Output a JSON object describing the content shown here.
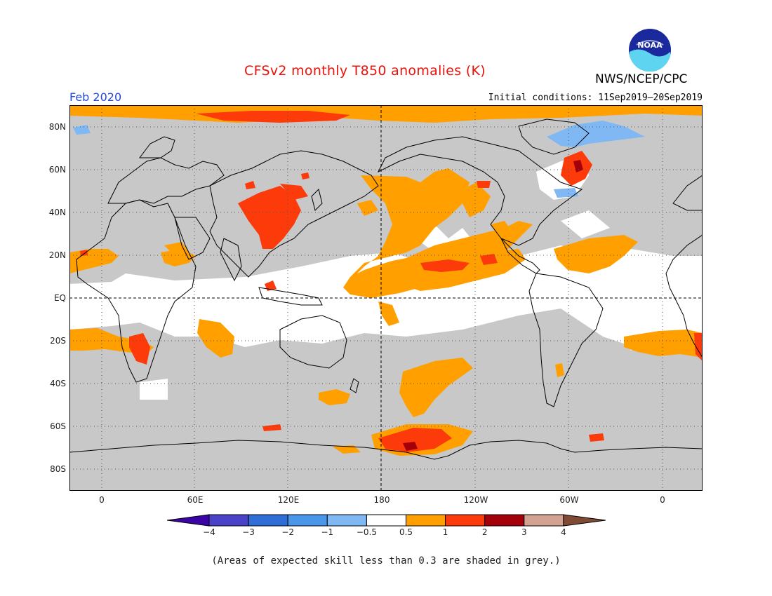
{
  "header": {
    "title": "CFSv2 monthly T850 anomalies (K)",
    "agency": "NWS/NCEP/CPC",
    "valid_month": "Feb 2020",
    "initial_conditions": "Initial conditions: 11Sep2019–20Sep2019",
    "logo_text": "NOAA"
  },
  "axes": {
    "latitude_labels": [
      "80N",
      "60N",
      "40N",
      "20N",
      "EQ",
      "20S",
      "40S",
      "60S",
      "80S"
    ],
    "longitude_labels": [
      "0",
      "60E",
      "120E",
      "180",
      "120W",
      "60W",
      "0"
    ]
  },
  "colorbar": {
    "labels": [
      "−4",
      "−3",
      "−2",
      "−1",
      "−0.5",
      "0.5",
      "1",
      "2",
      "3",
      "4"
    ],
    "colors": [
      "#3a04a6",
      "#4a43c8",
      "#2f6ed6",
      "#4a96ea",
      "#7fb8f2",
      "#ffffff",
      "#ff9f00",
      "#fd3a0a",
      "#a4000a",
      "#d4a292",
      "#7f4b35"
    ]
  },
  "footnote": "(Areas of expected skill less than 0.3 are shaded in grey.)",
  "colors": {
    "grey_low_skill": "#c8c8c8",
    "anom_0_5_to_1": "#ff9f00",
    "anom_1_to_2": "#fd3a0a",
    "anom_2_to_3": "#a4000a",
    "anom_neg": "#7fb8f2",
    "title_red": "#e8130c",
    "date_blue": "#2346d6"
  }
}
